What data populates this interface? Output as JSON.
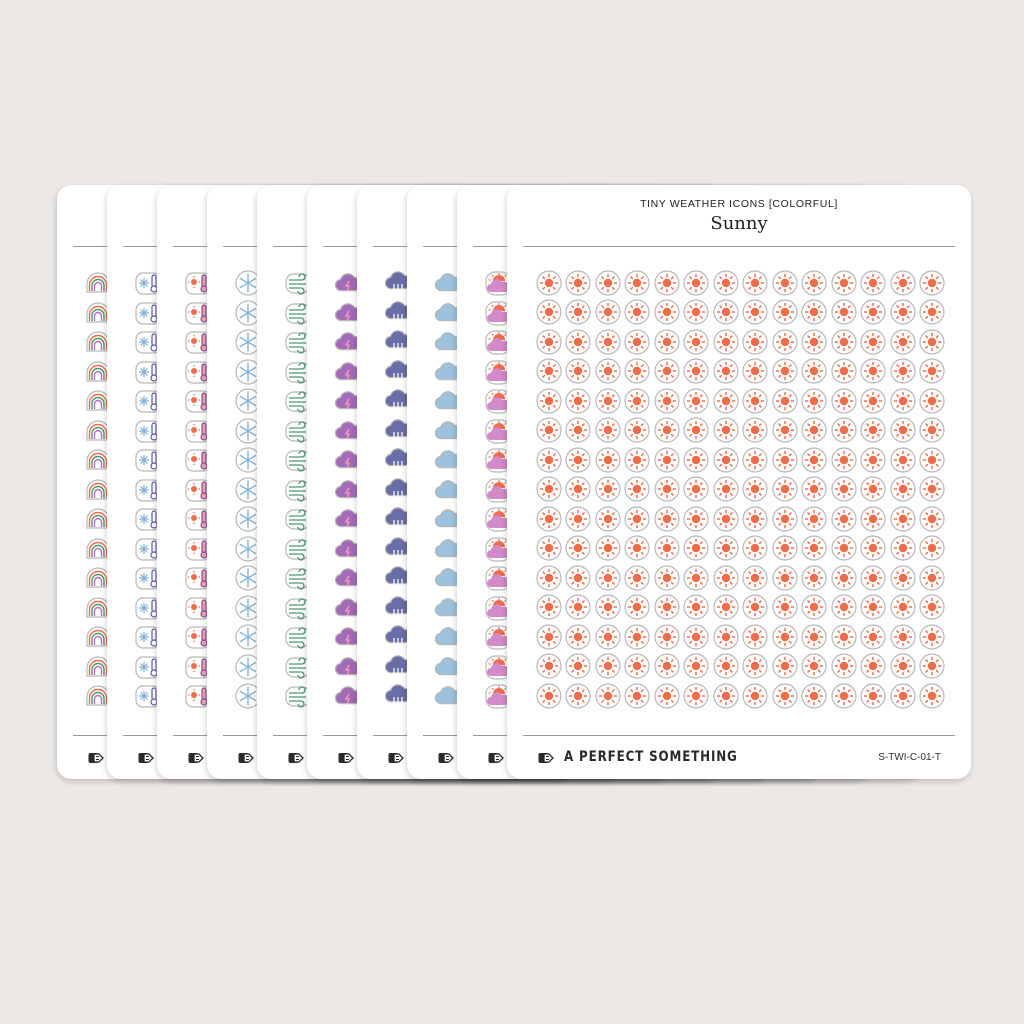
{
  "product": {
    "series_title": "TINY WEATHER ICONS [COLORFUL]",
    "sheet_title": "Sunny",
    "brand": "A PERFECT SOMETHING",
    "sku": "S-TWI-C-01-T"
  },
  "colors": {
    "background": "#ece8e5",
    "sheet": "#ffffff",
    "sun_orange": "#ef6c4a",
    "outline_gray": "#b5b5b5",
    "rule_gray": "#9a9a9a"
  },
  "front_grid": {
    "columns": 14,
    "rows": 15,
    "icon": "sun-icon"
  },
  "back_sheets": [
    {
      "icon": "rainbow-icon"
    },
    {
      "icon": "snow-thermometer-icon"
    },
    {
      "icon": "hot-thermometer-icon"
    },
    {
      "icon": "snowflake-icon"
    },
    {
      "icon": "wind-icon"
    },
    {
      "icon": "thunderstorm-cloud-icon"
    },
    {
      "icon": "rain-cloud-icon"
    },
    {
      "icon": "cloud-icon"
    },
    {
      "icon": "partly-sunny-icon"
    }
  ]
}
